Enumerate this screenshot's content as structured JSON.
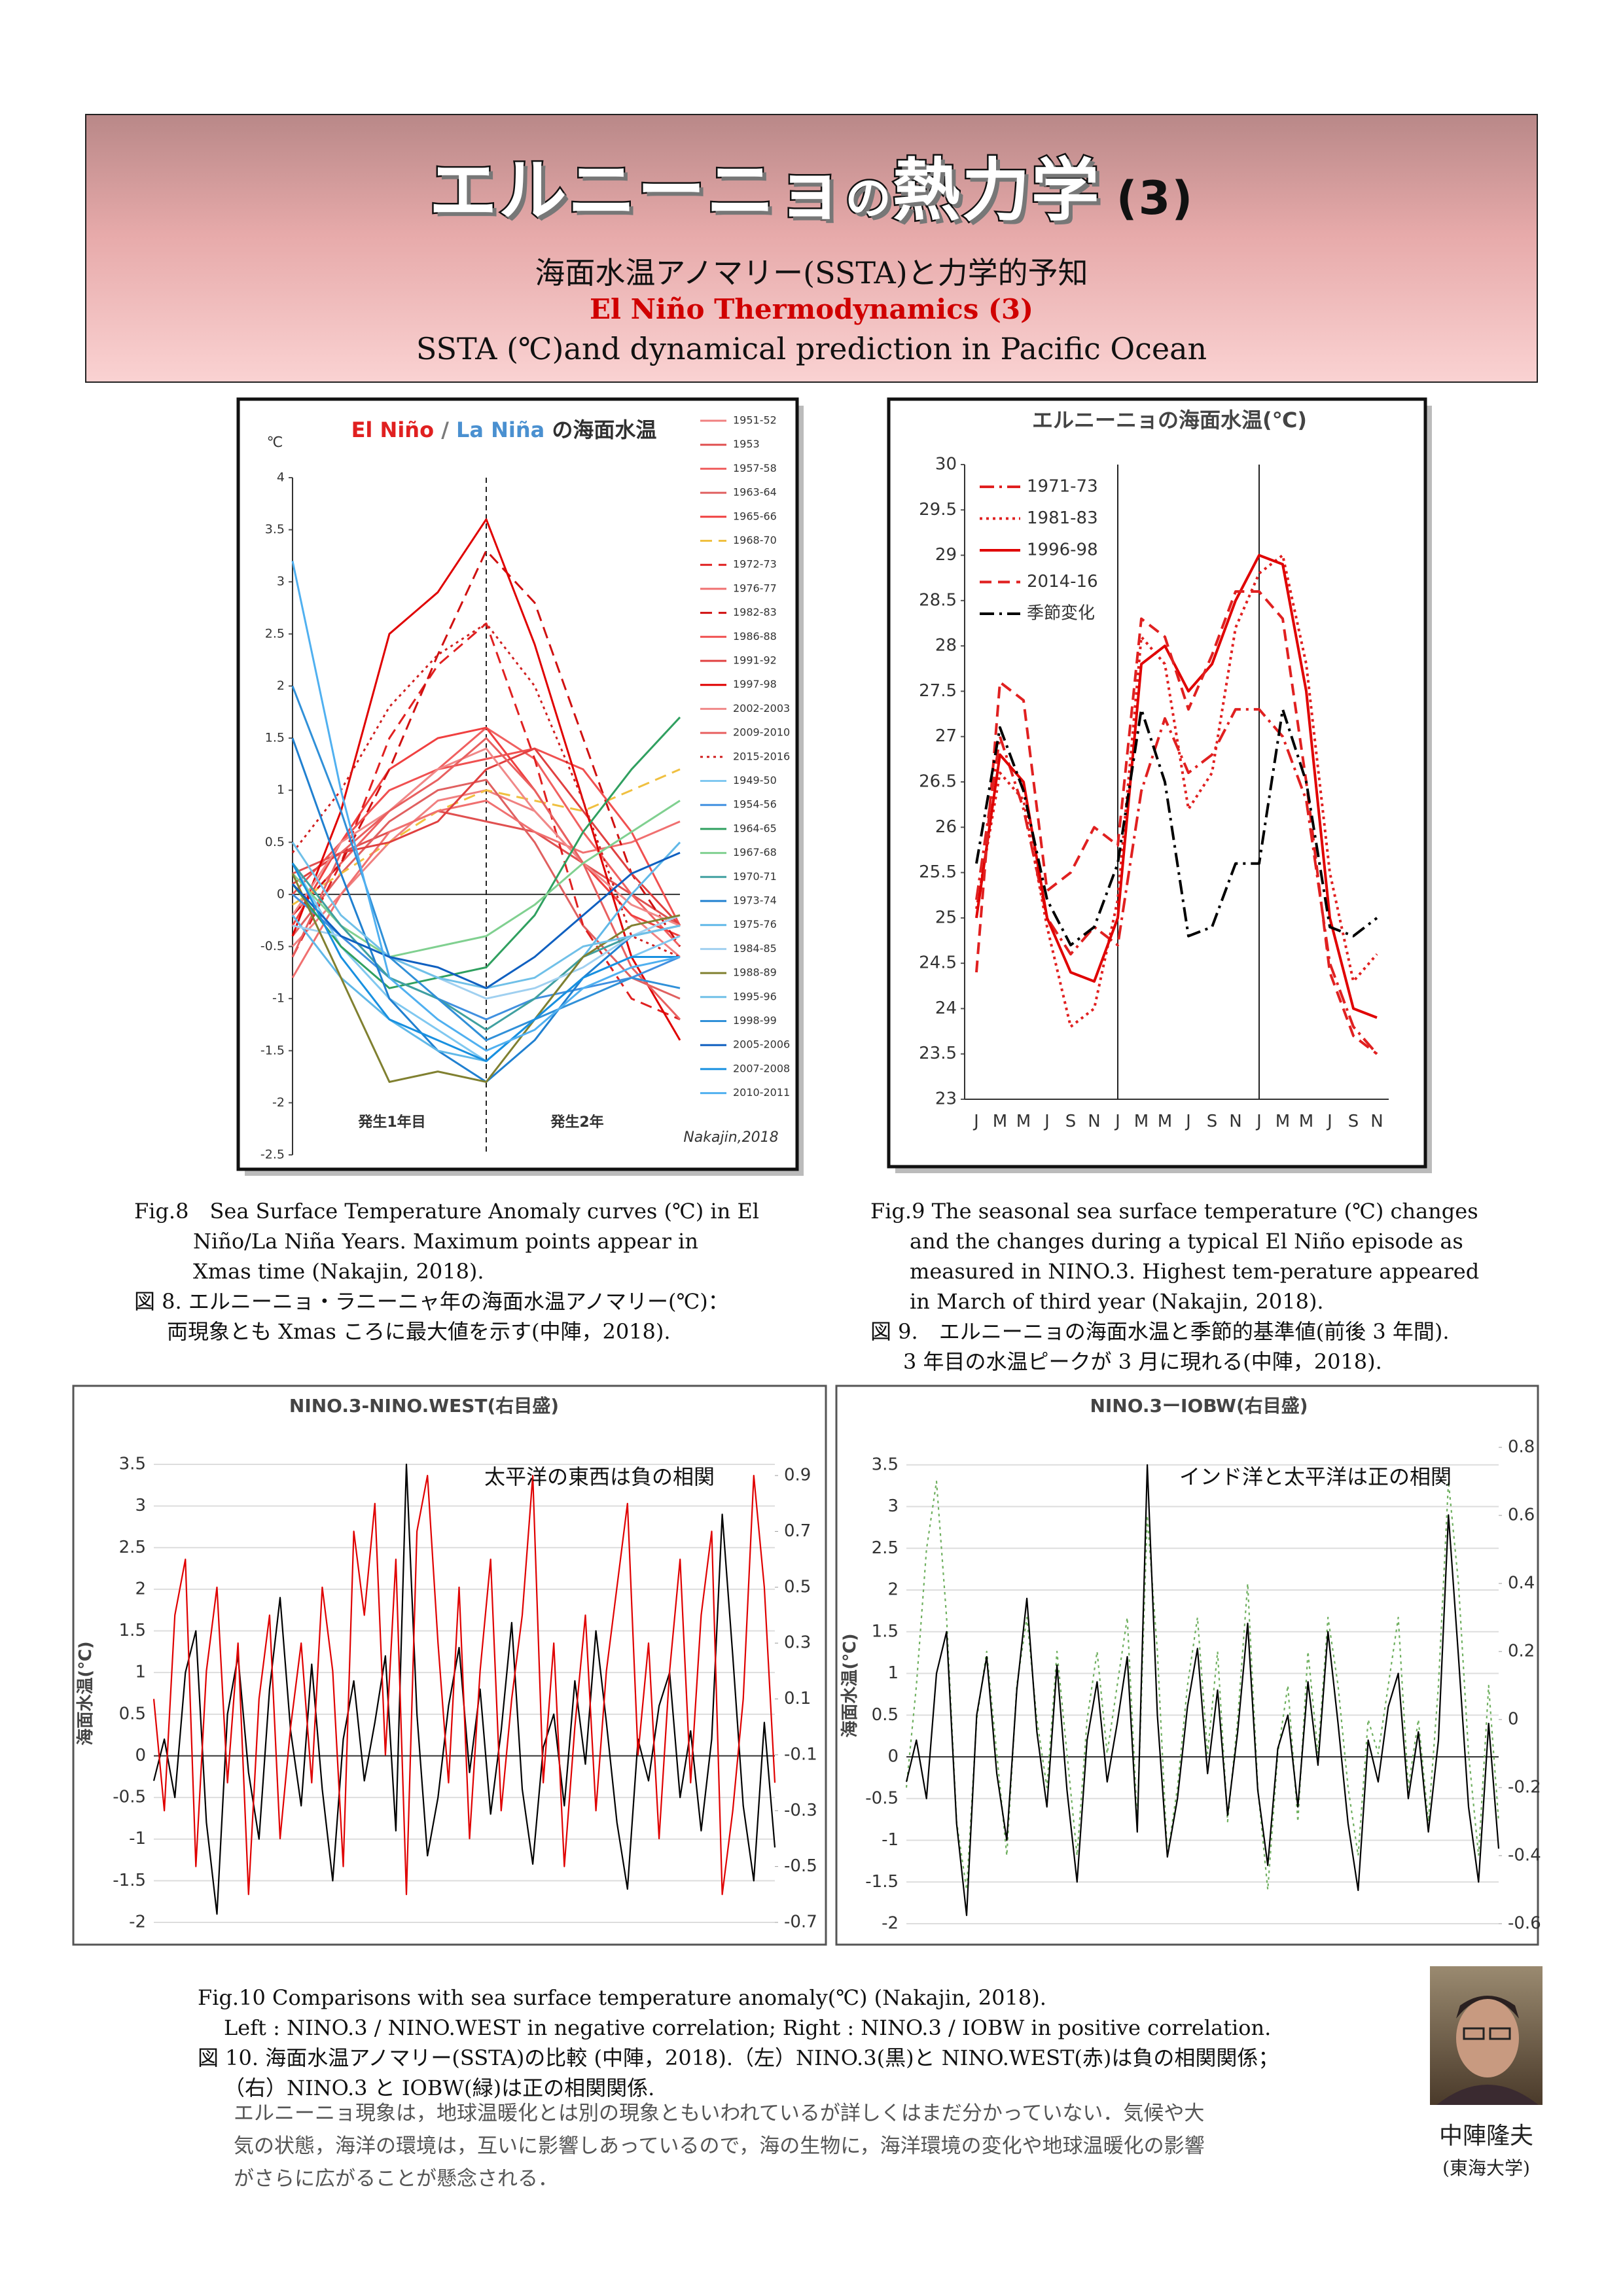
{
  "header": {
    "title_parts": [
      "エルニーニョ",
      "の",
      "熱力学",
      "(3)"
    ],
    "subtitle_ja": "海面水温アノマリー(SSTA)と力学的予知",
    "subtitle_en": "El Niño Thermodynamics (3)",
    "subtitle_en2": "SSTA (℃)and dynamical prediction in Pacific Ocean"
  },
  "chart_data": [
    {
      "type": "line",
      "title_parts": [
        {
          "text": "El Niño",
          "color": "#e02020"
        },
        {
          "text": " / ",
          "color": "#7a7a7a"
        },
        {
          "text": "La Niña",
          "color": "#4a90d0"
        },
        {
          "text": " の海面水温",
          "color": "#303030"
        }
      ],
      "unit": "℃",
      "annotations": [
        "発生1年目",
        "発生2年",
        "Nakajin,2018"
      ],
      "x": [
        0,
        3,
        6,
        9,
        12,
        15,
        18,
        21,
        24
      ],
      "xlim": [
        0,
        24
      ],
      "ylim": [
        -2.5,
        4
      ],
      "yticks": [
        -2.5,
        -2,
        -1.5,
        -1,
        -0.5,
        0,
        0.5,
        1,
        1.5,
        2,
        2.5,
        3,
        3.5,
        4
      ],
      "grid": false,
      "legend": "right-outside",
      "series": [
        {
          "name": "1951-52",
          "color": "#f08080",
          "values": [
            -0.5,
            0.0,
            0.5,
            0.9,
            1.0,
            0.8,
            0.3,
            -0.2,
            -0.6
          ]
        },
        {
          "name": "1953",
          "color": "#e05050",
          "values": [
            0.2,
            0.4,
            0.6,
            0.8,
            0.7,
            0.6,
            0.3,
            0.0,
            -0.3
          ]
        },
        {
          "name": "1957-58",
          "color": "#f06060",
          "values": [
            -0.2,
            0.3,
            0.8,
            1.2,
            1.6,
            1.3,
            0.6,
            0.0,
            -0.5
          ]
        },
        {
          "name": "1963-64",
          "color": "#e06060",
          "values": [
            -0.4,
            0.2,
            0.7,
            1.0,
            1.1,
            0.5,
            -0.3,
            -0.8,
            -1.0
          ]
        },
        {
          "name": "1965-66",
          "color": "#f04040",
          "values": [
            -0.3,
            0.5,
            1.2,
            1.5,
            1.6,
            1.0,
            0.3,
            -0.2,
            -0.4
          ]
        },
        {
          "name": "1968-70",
          "color": "#f0c040",
          "style": "dashed",
          "values": [
            -0.1,
            0.2,
            0.5,
            0.8,
            1.0,
            0.9,
            0.8,
            1.0,
            1.2
          ]
        },
        {
          "name": "1972-73",
          "color": "#e02020",
          "style": "dashed",
          "values": [
            -0.6,
            0.3,
            1.5,
            2.2,
            2.6,
            1.3,
            -0.3,
            -1.0,
            -1.2
          ]
        },
        {
          "name": "1976-77",
          "color": "#f07070",
          "values": [
            -0.8,
            0.0,
            0.6,
            0.8,
            0.9,
            0.6,
            0.4,
            0.5,
            0.7
          ]
        },
        {
          "name": "1982-83",
          "color": "#d01010",
          "style": "dashed",
          "values": [
            -0.2,
            0.3,
            1.2,
            2.3,
            3.3,
            2.8,
            1.5,
            0.2,
            -0.5
          ]
        },
        {
          "name": "1986-88",
          "color": "#f05050",
          "values": [
            0.0,
            0.5,
            1.0,
            1.2,
            1.3,
            1.4,
            1.2,
            0.6,
            -0.3
          ]
        },
        {
          "name": "1991-92",
          "color": "#e04040",
          "values": [
            0.1,
            0.4,
            0.5,
            0.7,
            1.2,
            1.4,
            0.8,
            0.2,
            -0.3
          ]
        },
        {
          "name": "1997-98",
          "color": "#e00000",
          "values": [
            -0.4,
            0.8,
            2.5,
            2.9,
            3.6,
            2.4,
            0.9,
            -0.6,
            -1.4
          ]
        },
        {
          "name": "2002-2003",
          "color": "#f08888",
          "values": [
            -0.2,
            0.5,
            0.8,
            1.2,
            1.4,
            0.8,
            0.3,
            -0.1,
            -0.3
          ]
        },
        {
          "name": "2009-2010",
          "color": "#e86060",
          "values": [
            -0.6,
            0.4,
            0.8,
            1.1,
            1.5,
            1.0,
            0.3,
            -0.7,
            -1.2
          ]
        },
        {
          "name": "2015-2016",
          "color": "#d02020",
          "style": "dotted",
          "values": [
            0.4,
            1.0,
            1.8,
            2.3,
            2.6,
            2.0,
            0.9,
            -0.4,
            -0.6
          ]
        },
        {
          "name": "1949-50",
          "color": "#80c8f0",
          "values": [
            0.3,
            -0.5,
            -1.0,
            -1.3,
            -1.6,
            -1.2,
            -0.8,
            -0.6,
            -0.4
          ]
        },
        {
          "name": "1954-56",
          "color": "#4090e0",
          "values": [
            0.0,
            -0.4,
            -0.8,
            -1.0,
            -1.2,
            -1.0,
            -0.9,
            -0.8,
            -0.6
          ]
        },
        {
          "name": "1964-65",
          "color": "#30a060",
          "values": [
            0.1,
            -0.5,
            -0.9,
            -0.8,
            -0.7,
            -0.2,
            0.6,
            1.2,
            1.7
          ]
        },
        {
          "name": "1967-68",
          "color": "#80d090",
          "values": [
            0.2,
            -0.3,
            -0.6,
            -0.5,
            -0.4,
            -0.1,
            0.3,
            0.6,
            0.9
          ]
        },
        {
          "name": "1970-71",
          "color": "#40a0a0",
          "values": [
            0.3,
            -0.3,
            -0.8,
            -1.0,
            -1.3,
            -1.0,
            -0.6,
            -0.4,
            -0.3
          ]
        },
        {
          "name": "1973-74",
          "color": "#2080d0",
          "values": [
            1.5,
            0.2,
            -1.0,
            -1.5,
            -1.8,
            -1.4,
            -0.8,
            -0.4,
            -0.3
          ]
        },
        {
          "name": "1975-76",
          "color": "#60b8e8",
          "values": [
            -0.2,
            -0.8,
            -1.2,
            -1.5,
            -1.6,
            -1.2,
            -0.6,
            0.0,
            0.5
          ]
        },
        {
          "name": "1984-85",
          "color": "#a0d0f0",
          "values": [
            -0.3,
            -0.4,
            -0.6,
            -0.8,
            -1.0,
            -0.9,
            -0.7,
            -0.4,
            -0.2
          ]
        },
        {
          "name": "1988-89",
          "color": "#808030",
          "values": [
            0.2,
            -0.8,
            -1.8,
            -1.7,
            -1.8,
            -1.2,
            -0.6,
            -0.3,
            -0.2
          ]
        },
        {
          "name": "1995-96",
          "color": "#70c0e8",
          "values": [
            0.5,
            -0.2,
            -0.6,
            -0.8,
            -0.9,
            -0.8,
            -0.5,
            -0.4,
            -0.3
          ]
        },
        {
          "name": "1998-99",
          "color": "#3090d8",
          "values": [
            2.0,
            0.8,
            -0.6,
            -1.0,
            -1.4,
            -1.2,
            -1.0,
            -0.8,
            -0.9
          ]
        },
        {
          "name": "2005-2006",
          "color": "#1060c0",
          "values": [
            0.1,
            -0.4,
            -0.6,
            -0.7,
            -0.9,
            -0.6,
            -0.2,
            0.2,
            0.4
          ]
        },
        {
          "name": "2007-2008",
          "color": "#1890e0",
          "values": [
            0.3,
            -0.6,
            -1.2,
            -1.4,
            -1.6,
            -1.2,
            -0.8,
            -0.6,
            -0.6
          ]
        },
        {
          "name": "2010-2011",
          "color": "#50b0f0",
          "values": [
            3.2,
            1.0,
            -0.8,
            -1.2,
            -1.5,
            -1.3,
            -0.9,
            -0.7,
            -0.6
          ]
        }
      ]
    },
    {
      "type": "line",
      "title": "エルニーニョの海面水温(℃)",
      "categories": [
        "J",
        "M",
        "M",
        "J",
        "S",
        "N",
        "J",
        "M",
        "M",
        "J",
        "S",
        "N",
        "J",
        "M",
        "M",
        "J",
        "S",
        "N"
      ],
      "ylim": [
        23,
        30
      ],
      "yticks": [
        23,
        23.5,
        24,
        24.5,
        25,
        25.5,
        26,
        26.5,
        27,
        27.5,
        28,
        28.5,
        29,
        29.5,
        30
      ],
      "grid": false,
      "legend": "upper-left",
      "series": [
        {
          "name": "1971-73",
          "color": "#e02020",
          "style": "dashdot",
          "values": [
            25.2,
            27.0,
            26.2,
            25.0,
            24.6,
            24.9,
            24.7,
            26.4,
            27.2,
            26.6,
            26.8,
            27.3,
            27.3,
            27.0,
            26.3,
            24.5,
            23.8,
            23.5
          ]
        },
        {
          "name": "1981-83",
          "color": "#e02020",
          "style": "dotted",
          "values": [
            25.1,
            26.6,
            26.3,
            24.9,
            23.8,
            24.0,
            25.2,
            28.1,
            27.8,
            26.2,
            26.6,
            28.2,
            28.8,
            29.0,
            27.8,
            25.5,
            24.3,
            24.6
          ]
        },
        {
          "name": "1996-98",
          "color": "#e00000",
          "style": "solid",
          "values": [
            25.0,
            26.8,
            26.5,
            25.0,
            24.4,
            24.3,
            25.0,
            27.8,
            28.0,
            27.5,
            27.8,
            28.5,
            29.0,
            28.9,
            27.5,
            25.0,
            24.0,
            23.9
          ]
        },
        {
          "name": "2014-16",
          "color": "#e02020",
          "style": "dashed",
          "values": [
            24.4,
            27.6,
            27.4,
            25.3,
            25.5,
            26.0,
            25.8,
            28.3,
            28.1,
            27.3,
            27.9,
            28.6,
            28.6,
            28.3,
            26.5,
            24.4,
            23.7,
            23.5
          ]
        },
        {
          "name": "季節変化",
          "color": "#000000",
          "style": "dashdot",
          "values": [
            25.6,
            27.1,
            26.4,
            25.2,
            24.7,
            24.9,
            25.6,
            27.3,
            26.5,
            24.8,
            24.9,
            25.6,
            25.6,
            27.3,
            26.5,
            24.9,
            24.8,
            25.0
          ]
        }
      ]
    },
    {
      "type": "line",
      "title": "NINO.3-NINO.WEST(右目盛)",
      "ylabel": "海面水温(℃)",
      "annotation": "太平洋の東西は負の相関",
      "ylim": [
        -2,
        3.5
      ],
      "yticks": [
        -2,
        -1.5,
        -1,
        -0.5,
        0,
        0.5,
        1,
        1.5,
        2,
        2.5,
        3,
        3.5
      ],
      "y2lim": [
        -0.7,
        0.94
      ],
      "y2ticks": [
        -0.7,
        -0.5,
        -0.3,
        -0.1,
        0.1,
        0.3,
        0.5,
        0.7,
        0.9
      ],
      "grid": true,
      "series": [
        {
          "color": "#000000",
          "values": [
            -0.3,
            0.2,
            -0.5,
            1.0,
            1.5,
            -0.8,
            -1.9,
            0.5,
            1.2,
            -0.2,
            -1.0,
            0.8,
            1.9,
            0.3,
            -0.6,
            1.1,
            -0.4,
            -1.5,
            0.2,
            0.9,
            -0.3,
            0.4,
            1.2,
            -0.9,
            3.5,
            0.5,
            -1.2,
            -0.5,
            0.6,
            1.3,
            -0.2,
            0.8,
            -0.7,
            0.3,
            1.6,
            -0.4,
            -1.3,
            0.1,
            0.5,
            -0.6,
            0.9,
            -0.1,
            1.5,
            0.4,
            -0.8,
            -1.6,
            0.2,
            -0.3,
            0.6,
            1.0,
            -0.5,
            0.3,
            -0.9,
            0.2,
            2.9,
            1.2,
            -0.6,
            -1.5,
            0.4,
            -1.1
          ]
        },
        {
          "color": "#e00000",
          "axis": "y2",
          "values": [
            0.1,
            -0.3,
            0.4,
            0.6,
            -0.5,
            0.2,
            0.5,
            -0.2,
            0.3,
            -0.6,
            0.1,
            0.4,
            -0.4,
            0.0,
            0.3,
            -0.2,
            0.5,
            0.2,
            -0.5,
            0.7,
            0.4,
            0.8,
            -0.1,
            0.6,
            -0.6,
            0.7,
            0.9,
            0.3,
            -0.2,
            0.5,
            -0.4,
            0.2,
            0.6,
            -0.3,
            0.1,
            0.4,
            0.9,
            -0.2,
            0.3,
            -0.5,
            0.0,
            0.4,
            -0.3,
            0.2,
            0.5,
            0.8,
            -0.1,
            0.3,
            -0.4,
            0.2,
            0.6,
            -0.2,
            0.4,
            0.7,
            -0.6,
            -0.3,
            0.1,
            0.9,
            0.5,
            -0.2
          ]
        }
      ]
    },
    {
      "type": "line",
      "title": "NINO.3ーIOBW(右目盛)",
      "ylabel": "海面水温(℃)",
      "annotation": "インド洋と太平洋は正の相関",
      "ylim": [
        -2,
        3.71
      ],
      "yticks": [
        -2,
        -1.5,
        -1,
        -0.5,
        0,
        0.5,
        1,
        1.5,
        2,
        2.5,
        3,
        3.5
      ],
      "y2lim": [
        -0.6,
        0.8
      ],
      "y2ticks": [
        -0.6,
        -0.4,
        -0.2,
        0,
        0.2,
        0.4,
        0.6,
        0.8
      ],
      "grid": true,
      "series": [
        {
          "color": "#70b060",
          "axis": "y2",
          "style": "dotted",
          "values": [
            -0.2,
            0.1,
            0.5,
            0.7,
            0.3,
            -0.3,
            -0.5,
            0.0,
            0.2,
            -0.1,
            -0.4,
            0.1,
            0.3,
            0.0,
            -0.2,
            0.2,
            -0.1,
            -0.4,
            0.0,
            0.2,
            -0.1,
            0.1,
            0.3,
            -0.3,
            0.6,
            0.2,
            -0.4,
            -0.2,
            0.1,
            0.3,
            -0.1,
            0.2,
            -0.3,
            0.0,
            0.4,
            -0.2,
            -0.5,
            -0.1,
            0.1,
            -0.3,
            0.2,
            -0.1,
            0.3,
            0.1,
            -0.2,
            -0.4,
            0.0,
            -0.1,
            0.1,
            0.3,
            -0.2,
            0.0,
            -0.3,
            0.1,
            0.7,
            0.4,
            -0.1,
            -0.4,
            0.1,
            -0.3
          ]
        },
        {
          "color": "#000000",
          "values": [
            -0.3,
            0.2,
            -0.5,
            1.0,
            1.5,
            -0.8,
            -1.9,
            0.5,
            1.2,
            -0.2,
            -1.0,
            0.8,
            1.9,
            0.3,
            -0.6,
            1.1,
            -0.4,
            -1.5,
            0.2,
            0.9,
            -0.3,
            0.4,
            1.2,
            -0.9,
            3.5,
            0.5,
            -1.2,
            -0.5,
            0.6,
            1.3,
            -0.2,
            0.8,
            -0.7,
            0.3,
            1.6,
            -0.4,
            -1.3,
            0.1,
            0.5,
            -0.6,
            0.9,
            -0.1,
            1.5,
            0.4,
            -0.8,
            -1.6,
            0.2,
            -0.3,
            0.6,
            1.0,
            -0.5,
            0.3,
            -0.9,
            0.2,
            2.9,
            1.2,
            -0.6,
            -1.5,
            0.4,
            -1.1
          ]
        }
      ]
    }
  ],
  "captions": [
    {
      "en": [
        "Fig.8　Sea Surface Temperature Anomaly curves (℃) in El",
        "Niño/La Niña Years. Maximum points appear in",
        "Xmas time (Nakajin, 2018)."
      ],
      "ja": [
        "図 8. エルニーニョ・ラニーニャ年の海面水温アノマリー(℃)：",
        "両現象とも Xmas ころに最大値を示す(中陣，2018)."
      ]
    },
    {
      "en": [
        "Fig.9 The seasonal sea surface temperature (℃) changes",
        "and the changes during a typical El Niño episode as",
        "measured in NINO.3. Highest tem-perature appeared",
        "in March of third year (Nakajin, 2018)."
      ],
      "ja": [
        "図 9.　エルニーニョの海面水温と季節的基準値(前後 3 年間).",
        "3 年目の水温ピークが 3 月に現れる(中陣，2018)."
      ]
    },
    {
      "en": [
        "Fig.10 Comparisons with sea surface temperature anomaly(℃) (Nakajin, 2018).",
        "Left : NINO.3 / NINO.WEST in negative correlation; Right : NINO.3 / IOBW in positive correlation."
      ],
      "ja": [
        "図 10. 海面水温アノマリー(SSTA)の比較 (中陣，2018).（左）NINO.3(黒)と NINO.WEST(赤)は負の相関関係；",
        "（右）NINO.3 と IOBW(緑)は正の相関関係."
      ]
    }
  ],
  "body": [
    "エルニーニョ現象は，地球温暖化とは別の現象ともいわれているが詳しくはまだ分かっていない．気候や大",
    "気の状態，海洋の環境は，互いに影響しあっているので，海の生物に，海洋環境の変化や地球温暖化の影響",
    "がさらに広がることが懸念される．"
  ],
  "author": {
    "name": "中陣隆夫",
    "affiliation": "(東海大学)"
  }
}
